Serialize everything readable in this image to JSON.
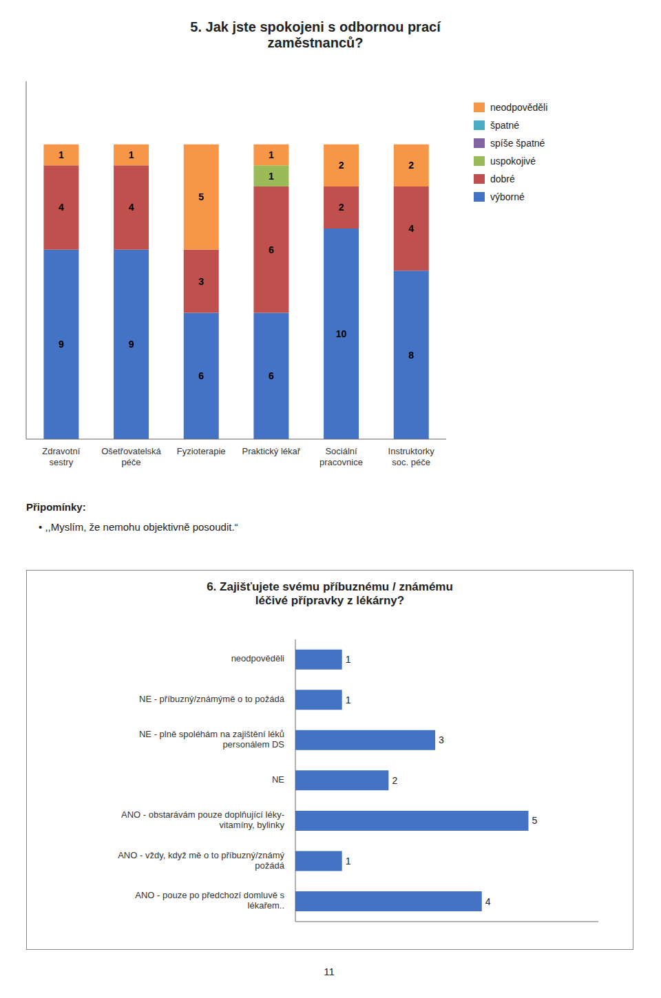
{
  "chart_data": [
    {
      "type": "bar",
      "stacked": true,
      "title": "5. Jak jste spokojeni s odbornou prací\nzaměstnanců?",
      "categories": [
        "Zdravotní\nsestry",
        "Ošetřovatelská\npéče",
        "Fyzioterapie",
        "Praktický lékař",
        "Sociální\npracovnice",
        "Instruktorky\nsoc. péče"
      ],
      "series": [
        {
          "name": "výborné",
          "color": "#4472C4",
          "values": [
            9,
            9,
            6,
            6,
            10,
            8
          ]
        },
        {
          "name": "dobré",
          "color": "#C0504D",
          "values": [
            4,
            4,
            3,
            6,
            2,
            4
          ]
        },
        {
          "name": "uspokojivé",
          "color": "#9BBB59",
          "values": [
            0,
            0,
            0,
            1,
            0,
            0
          ]
        },
        {
          "name": "spíše špatné",
          "color": "#8064A2",
          "values": [
            0,
            0,
            0,
            0,
            0,
            0
          ]
        },
        {
          "name": "špatné",
          "color": "#4BACC6",
          "values": [
            0,
            0,
            0,
            0,
            0,
            0
          ]
        },
        {
          "name": "neodpověděli",
          "color": "#F79646",
          "values": [
            1,
            1,
            5,
            1,
            2,
            2
          ]
        }
      ],
      "ylim": [
        0,
        17
      ],
      "yticks": [],
      "data_labels": true,
      "tick_labels": "x",
      "legend": "right",
      "annotations": [
        "Připomínky:",
        "•  ,,Myslím, že nemohu objektivně posoudit.“"
      ]
    },
    {
      "type": "bar",
      "orientation": "horizontal",
      "title": "6. Zajišťujete svému příbuznému / známému\nléčivé přípravky z lékárny?",
      "categories": [
        "neodpověděli",
        "NE - příbuzný/známýmě o to požádá",
        "NE - plně spoléhám na zajištění léků\npersonálem DS",
        "NE",
        "ANO - obstarávám pouze doplňující léky-\nvitamíny, bylinky",
        "ANO - vždy, když mě o to příbuzný/známý\npožádá",
        "ANO - pouze po předchozí domluvě s\nlékařem.."
      ],
      "values": [
        1,
        1,
        3,
        2,
        5,
        1,
        4
      ],
      "color": "#4472C4",
      "xlim": [
        0,
        6.5
      ],
      "xticks": [],
      "data_labels": true,
      "tick_labels": "y",
      "annotations": [
        "11"
      ]
    }
  ]
}
